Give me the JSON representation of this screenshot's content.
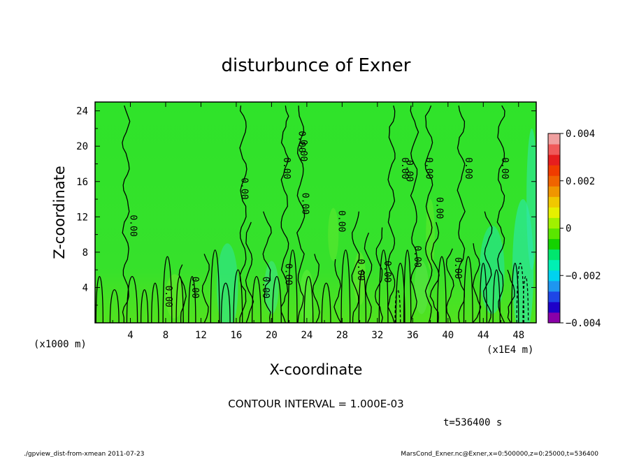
{
  "chart_data": {
    "type": "heatmap",
    "title": "disturbunce of Exner",
    "xlabel": "X-coordinate",
    "ylabel": "Z-coordinate",
    "x_unit_label": "(x1000 m)",
    "x_scale_label": "(x1E4 m)",
    "xlim": [
      0,
      50
    ],
    "ylim": [
      0,
      25
    ],
    "x_ticks": [
      "4",
      "8",
      "12",
      "16",
      "20",
      "24",
      "28",
      "32",
      "36",
      "40",
      "44",
      "48"
    ],
    "y_ticks": [
      "4",
      "8",
      "12",
      "16",
      "20",
      "24"
    ],
    "colorbar": {
      "min": -0.004,
      "max": 0.004,
      "tick_labels": [
        "0.004",
        "0.002",
        "0",
        "−0.002",
        "−0.004"
      ],
      "colors": [
        "#8a00a8",
        "#1e00c8",
        "#1e46e6",
        "#1e96f0",
        "#00d2f0",
        "#00f0b4",
        "#00e66e",
        "#14d200",
        "#5ae600",
        "#a0f000",
        "#e6f000",
        "#f0c800",
        "#f09600",
        "#f06400",
        "#f03c00",
        "#e61e1e",
        "#f05a5a",
        "#f0a0a0"
      ]
    },
    "contour_labels": [
      "0.00",
      "0.00",
      "0.00",
      "0.00",
      "0.00",
      "0.00",
      "0.00",
      "0.00",
      "0.00",
      "0.00",
      "0.00",
      "0.00",
      "0.00",
      "0.00",
      "0.00",
      "0.00",
      "0.00",
      "0.00",
      "0.00",
      "0.00",
      "0.00"
    ],
    "grid": false
  },
  "annotations": {
    "contour_interval": "CONTOUR INTERVAL = 1.000E-03",
    "time": "t=536400 s",
    "footer_left": "./gpview_dist-from-xmean  2011-07-23",
    "footer_right": "MarsCond_Exner.nc@Exner,x=0:500000,z=0:25000,t=536400"
  }
}
